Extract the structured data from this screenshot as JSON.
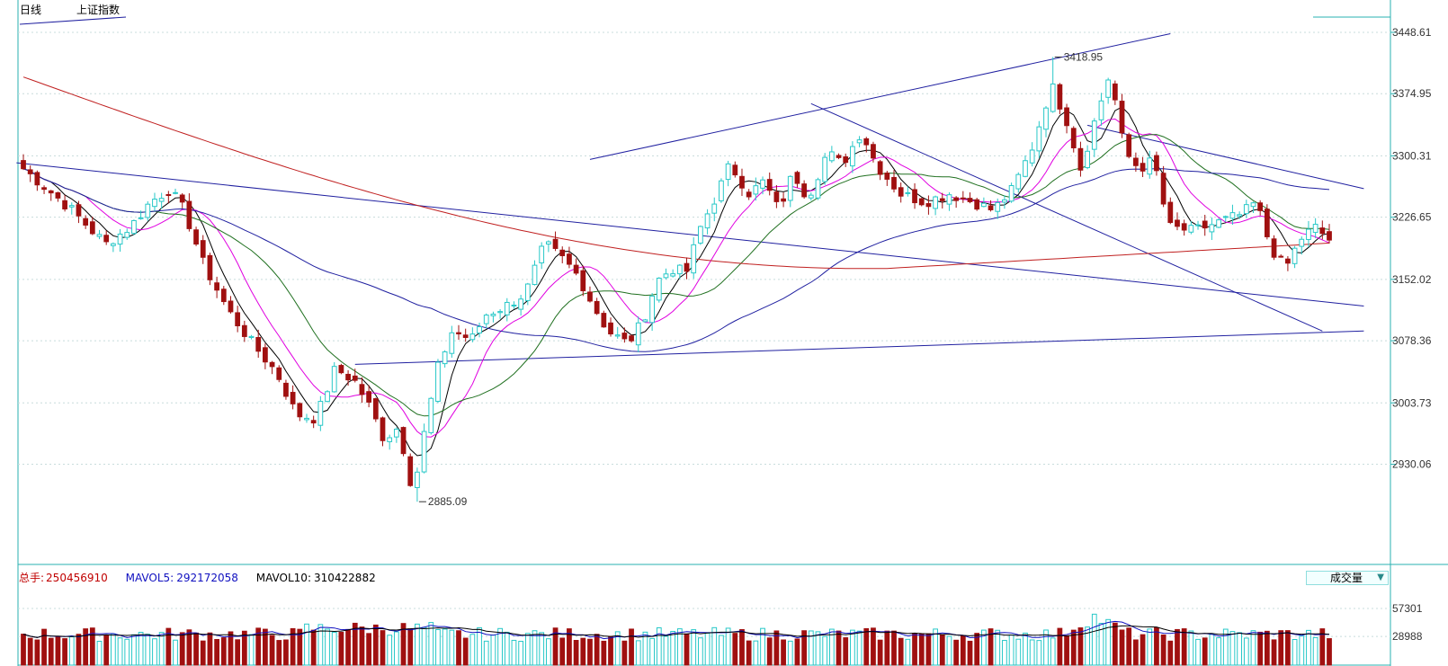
{
  "header": {
    "period_tab": "日线",
    "index_name": "上证指数"
  },
  "volume_info": {
    "total_label": "总手:",
    "total_value": "250456910",
    "mavol5_label": "MAVOL5:",
    "mavol5_value": "292172058",
    "mavol10_label": "MAVOL10:",
    "mavol10_value": "310422882"
  },
  "volume_selector": {
    "label": "成交量"
  },
  "colors": {
    "up": "#28c8c8",
    "down": "#a01010",
    "grid": "#c8dcdc",
    "frame": "#2ab0b0",
    "ma5": "#000000",
    "ma10": "#e000e0",
    "ma20": "#207020",
    "ma60": "#2020a0",
    "ma250": "#c02020",
    "trendline": "#2020a0"
  },
  "chart_data": [
    {
      "type": "candlestick",
      "title": "",
      "ylim": [
        2840,
        3468
      ],
      "y_ticks": [
        "3448.61",
        "3374.95",
        "3300.31",
        "3226.65",
        "3152.02",
        "3078.36",
        "3003.73",
        "2930.06"
      ],
      "annotations": [
        {
          "text": "3418.95",
          "value": 3418.95,
          "kind": "high"
        },
        {
          "text": "2885.09",
          "value": 2885.09,
          "kind": "low"
        }
      ],
      "count": 190,
      "high": 3418.95,
      "low": 2885.09,
      "anchors": [
        [
          0,
          3285
        ],
        [
          5,
          3260
        ],
        [
          10,
          3235
        ],
        [
          15,
          3205
        ],
        [
          17,
          3195
        ],
        [
          22,
          3215
        ],
        [
          26,
          3245
        ],
        [
          30,
          3260
        ],
        [
          33,
          3235
        ],
        [
          37,
          3170
        ],
        [
          42,
          3115
        ],
        [
          47,
          3075
        ],
        [
          52,
          3040
        ],
        [
          56,
          2990
        ],
        [
          60,
          2985
        ],
        [
          64,
          3045
        ],
        [
          68,
          3030
        ],
        [
          71,
          3000
        ],
        [
          74,
          2960
        ],
        [
          77,
          2975
        ],
        [
          80,
          2895
        ],
        [
          82,
          2960
        ],
        [
          85,
          3045
        ],
        [
          88,
          3090
        ],
        [
          92,
          3080
        ],
        [
          95,
          3110
        ],
        [
          99,
          3120
        ],
        [
          103,
          3135
        ],
        [
          107,
          3195
        ],
        [
          111,
          3175
        ],
        [
          114,
          3155
        ],
        [
          117,
          3120
        ],
        [
          120,
          3090
        ],
        [
          124,
          3075
        ],
        [
          127,
          3100
        ],
        [
          130,
          3150
        ],
        [
          133,
          3165
        ],
        [
          136,
          3160
        ],
        [
          139,
          3215
        ],
        [
          142,
          3250
        ],
        [
          145,
          3290
        ],
        [
          149,
          3255
        ],
        [
          152,
          3270
        ],
        [
          155,
          3235
        ],
        [
          158,
          3280
        ],
        [
          161,
          3250
        ],
        [
          165,
          3305
        ],
        [
          168,
          3290
        ],
        [
          172,
          3330
        ],
        [
          175,
          3290
        ],
        [
          180,
          3255
        ],
        [
          185,
          3245
        ],
        [
          190,
          3255
        ],
        [
          195,
          3245
        ],
        [
          199,
          3235
        ],
        [
          203,
          3260
        ],
        [
          207,
          3310
        ],
        [
          211,
          3385
        ],
        [
          214,
          3345
        ],
        [
          217,
          3285
        ],
        [
          220,
          3345
        ],
        [
          223,
          3400
        ],
        [
          226,
          3305
        ],
        [
          229,
          3285
        ],
        [
          232,
          3295
        ],
        [
          235,
          3215
        ],
        [
          240,
          3210
        ],
        [
          245,
          3220
        ],
        [
          250,
          3230
        ],
        [
          253,
          3245
        ],
        [
          256,
          3190
        ],
        [
          259,
          3165
        ],
        [
          262,
          3200
        ],
        [
          265,
          3215
        ],
        [
          268,
          3200
        ]
      ]
    },
    {
      "type": "bar",
      "title": "成交量",
      "series": [
        {
          "name": "总手",
          "value": 250456910
        },
        {
          "name": "MAVOL5",
          "value": 292172058
        },
        {
          "name": "MAVOL10",
          "value": 310422882
        }
      ],
      "y_ticks": [
        "57301",
        "28988"
      ],
      "ylim": [
        0,
        80000
      ]
    }
  ]
}
